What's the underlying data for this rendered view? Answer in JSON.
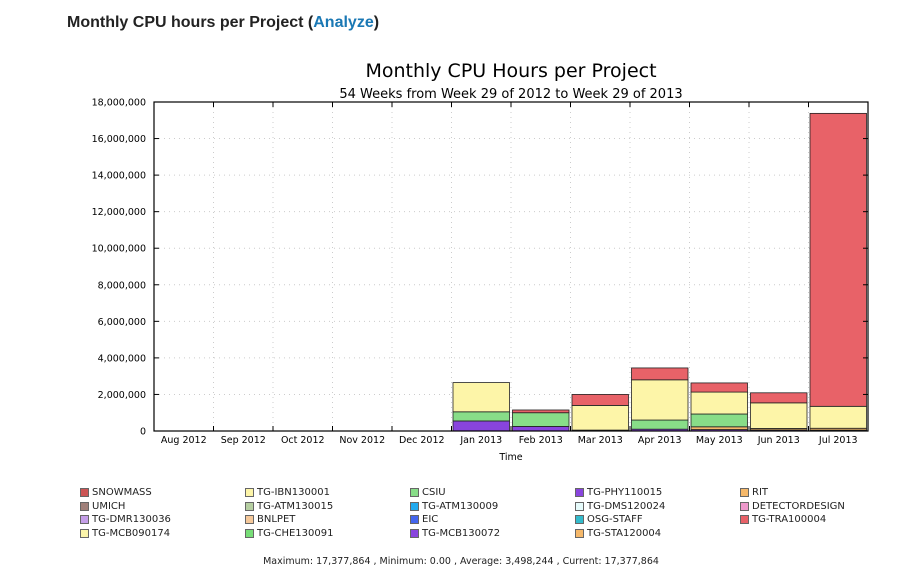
{
  "header": {
    "title_prefix": "Monthly CPU hours per Project (",
    "link": "Analyze",
    "title_suffix": ")"
  },
  "chart_data": {
    "type": "bar",
    "title": "Monthly CPU Hours per Project",
    "subtitle": "54 Weeks from Week 29 of 2012 to Week 29 of 2013",
    "xlabel": "Time",
    "ylabel": "",
    "ylim": [
      0,
      18000000
    ],
    "yticks": [
      "0",
      "2,000,000",
      "4,000,000",
      "6,000,000",
      "8,000,000",
      "10,000,000",
      "12,000,000",
      "14,000,000",
      "16,000,000",
      "18,000,000"
    ],
    "ytick_values": [
      0,
      2000000,
      4000000,
      6000000,
      8000000,
      10000000,
      12000000,
      14000000,
      16000000,
      18000000
    ],
    "categories": [
      "Aug 2012",
      "Sep 2012",
      "Oct 2012",
      "Nov 2012",
      "Dec 2012",
      "Jan 2013",
      "Feb 2013",
      "Mar 2013",
      "Apr 2013",
      "May 2013",
      "Jun 2013",
      "Jul 2013"
    ],
    "stacked": true,
    "grid": true,
    "series": [
      {
        "name": "TG-PHY110015",
        "color": "#8844dd",
        "values": [
          0,
          0,
          0,
          0,
          0,
          550000,
          250000,
          50000,
          100000,
          80000,
          60000,
          50000
        ]
      },
      {
        "name": "TG-STA120004",
        "color": "#f5b86a",
        "values": [
          0,
          0,
          0,
          0,
          0,
          0,
          0,
          0,
          0,
          150000,
          80000,
          100000
        ]
      },
      {
        "name": "CSIU",
        "color": "#88dd88",
        "values": [
          0,
          0,
          0,
          0,
          0,
          500000,
          750000,
          0,
          500000,
          700000,
          0,
          0
        ]
      },
      {
        "name": "TG-IBN130001",
        "color": "#fdf5a8",
        "values": [
          0,
          0,
          0,
          0,
          0,
          1600000,
          0,
          1350000,
          2200000,
          1200000,
          1400000,
          1200000
        ]
      },
      {
        "name": "TG-TRA100004",
        "color": "#e86268",
        "values": [
          0,
          0,
          0,
          0,
          0,
          0,
          150000,
          600000,
          650000,
          500000,
          550000,
          16027864
        ]
      }
    ],
    "legend": [
      {
        "name": "SNOWMASS",
        "color": "#cc5555"
      },
      {
        "name": "TG-IBN130001",
        "color": "#fdf5a8"
      },
      {
        "name": "CSIU",
        "color": "#88dd88"
      },
      {
        "name": "TG-PHY110015",
        "color": "#8844dd"
      },
      {
        "name": "RIT",
        "color": "#f5b86a"
      },
      {
        "name": "UMICH",
        "color": "#a0807a"
      },
      {
        "name": "TG-ATM130015",
        "color": "#b6cfa2"
      },
      {
        "name": "TG-ATM130009",
        "color": "#22aaee"
      },
      {
        "name": "TG-DMS120024",
        "color": "#e6fbfb"
      },
      {
        "name": "DETECTORDESIGN",
        "color": "#ee99cc"
      },
      {
        "name": "TG-DMR130036",
        "color": "#c49ee8"
      },
      {
        "name": "BNLPET",
        "color": "#f5c89a"
      },
      {
        "name": "EIC",
        "color": "#4466ee"
      },
      {
        "name": "OSG-STAFF",
        "color": "#33bbcc"
      },
      {
        "name": "TG-TRA100004",
        "color": "#e86268"
      },
      {
        "name": "TG-MCB090174",
        "color": "#fbf4aa"
      },
      {
        "name": "TG-CHE130091",
        "color": "#77dd77"
      },
      {
        "name": "TG-MCB130072",
        "color": "#8844dd"
      },
      {
        "name": "TG-STA120004",
        "color": "#f5b86a"
      }
    ]
  },
  "stats": "Maximum: 17,377,864 , Minimum: 0.00 , Average: 3,498,244 , Current: 17,377,864"
}
